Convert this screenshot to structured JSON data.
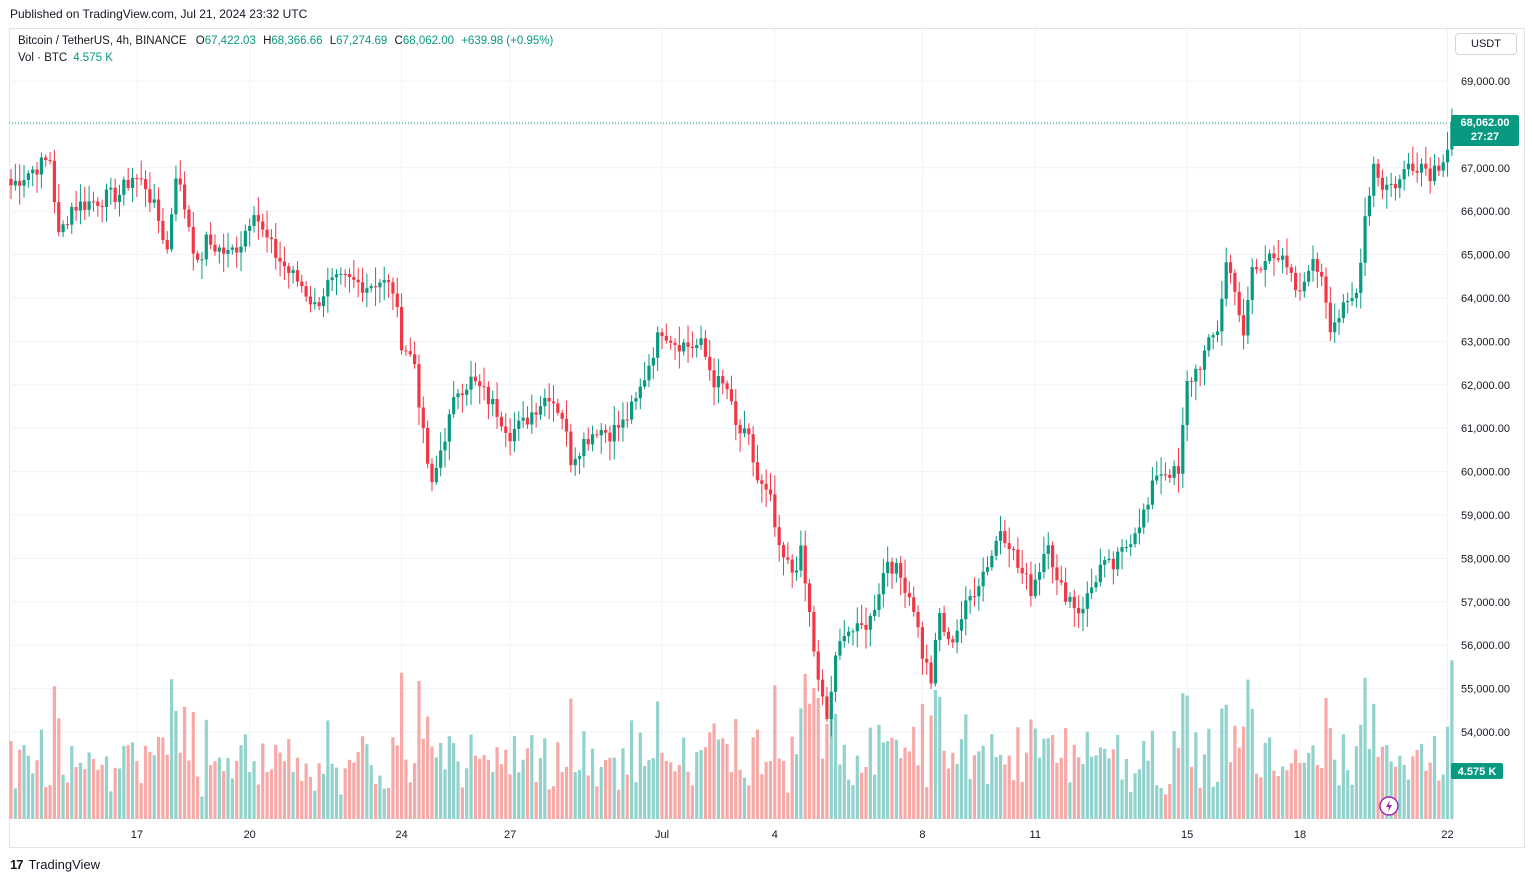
{
  "header": {
    "published": "Published on TradingView.com, Jul 21, 2024 23:32 UTC"
  },
  "legend": {
    "symbol": "Bitcoin / TetherUS, 4h, BINANCE",
    "open_label": "O",
    "open": "67,422.03",
    "high_label": "H",
    "high": "68,366.66",
    "low_label": "L",
    "low": "67,274.69",
    "close_label": "C",
    "close": "68,062.00",
    "change": "+639.98 (+0.95%)",
    "vol_label": "Vol · BTC",
    "vol_value": "4.575 K"
  },
  "currency_button": "USDT",
  "price_tag": {
    "price": "68,062.00",
    "countdown": "27:27"
  },
  "volume_tag": "4.575 K",
  "footer": {
    "brand": "TradingView",
    "logo_text": "17"
  },
  "colors": {
    "up": "#089981",
    "down": "#f23645",
    "up_vol": "#92d2cc",
    "down_vol": "#f7a9a7",
    "grid": "#f0f3fa"
  },
  "chart_data": {
    "type": "candlestick",
    "interval": "4h",
    "yaxis_ticks": [
      {
        "value": 69000,
        "label": "69,000.00"
      },
      {
        "value": 68000,
        "label": ""
      },
      {
        "value": 67000,
        "label": "67,000.00"
      },
      {
        "value": 66000,
        "label": "66,000.00"
      },
      {
        "value": 65000,
        "label": "65,000.00"
      },
      {
        "value": 64000,
        "label": "64,000.00"
      },
      {
        "value": 63000,
        "label": "63,000.00"
      },
      {
        "value": 62000,
        "label": "62,000.00"
      },
      {
        "value": 61000,
        "label": "61,000.00"
      },
      {
        "value": 60000,
        "label": "60,000.00"
      },
      {
        "value": 59000,
        "label": "59,000.00"
      },
      {
        "value": 58000,
        "label": "58,000.00"
      },
      {
        "value": 57000,
        "label": "57,000.00"
      },
      {
        "value": 56000,
        "label": "56,000.00"
      },
      {
        "value": 55000,
        "label": "55,000.00"
      },
      {
        "value": 54000,
        "label": "54,000.00"
      }
    ],
    "xaxis_ticks": [
      {
        "index": 29,
        "label": "17"
      },
      {
        "index": 55,
        "label": "20"
      },
      {
        "index": 90,
        "label": "24"
      },
      {
        "index": 115,
        "label": "27"
      },
      {
        "index": 150,
        "label": "Jul"
      },
      {
        "index": 176,
        "label": "4"
      },
      {
        "index": 210,
        "label": "8"
      },
      {
        "index": 236,
        "label": "11"
      },
      {
        "index": 271,
        "label": "15"
      },
      {
        "index": 297,
        "label": "18"
      },
      {
        "index": 331,
        "label": "22"
      }
    ],
    "ylim": [
      53350,
      70000
    ],
    "last_close": 68062,
    "waypoints": [
      [
        0,
        66600
      ],
      [
        4,
        66900
      ],
      [
        9,
        67200
      ],
      [
        11,
        65400
      ],
      [
        14,
        66100
      ],
      [
        18,
        66200
      ],
      [
        25,
        66400
      ],
      [
        28,
        66800
      ],
      [
        31,
        66600
      ],
      [
        34,
        65800
      ],
      [
        36,
        65100
      ],
      [
        38,
        66900
      ],
      [
        41,
        65700
      ],
      [
        43,
        64700
      ],
      [
        45,
        65300
      ],
      [
        50,
        65000
      ],
      [
        53,
        65300
      ],
      [
        56,
        66100
      ],
      [
        58,
        65500
      ],
      [
        61,
        65000
      ],
      [
        64,
        64600
      ],
      [
        67,
        64300
      ],
      [
        70,
        63800
      ],
      [
        73,
        64300
      ],
      [
        77,
        64400
      ],
      [
        82,
        64300
      ],
      [
        85,
        64400
      ],
      [
        88,
        64200
      ],
      [
        90,
        63000
      ],
      [
        93,
        62500
      ],
      [
        95,
        60800
      ],
      [
        97,
        59600
      ],
      [
        99,
        60500
      ],
      [
        101,
        61200
      ],
      [
        103,
        61900
      ],
      [
        106,
        62100
      ],
      [
        109,
        61800
      ],
      [
        112,
        61400
      ],
      [
        115,
        60900
      ],
      [
        118,
        61100
      ],
      [
        121,
        61500
      ],
      [
        124,
        61800
      ],
      [
        127,
        61300
      ],
      [
        129,
        60300
      ],
      [
        132,
        60700
      ],
      [
        135,
        61000
      ],
      [
        138,
        60900
      ],
      [
        141,
        61100
      ],
      [
        144,
        61600
      ],
      [
        146,
        62200
      ],
      [
        148,
        62800
      ],
      [
        150,
        63300
      ],
      [
        153,
        63000
      ],
      [
        156,
        62900
      ],
      [
        159,
        62900
      ],
      [
        162,
        62100
      ],
      [
        165,
        61900
      ],
      [
        167,
        61000
      ],
      [
        170,
        60700
      ],
      [
        172,
        59800
      ],
      [
        175,
        59300
      ],
      [
        177,
        58100
      ],
      [
        180,
        57700
      ],
      [
        182,
        58100
      ],
      [
        184,
        56700
      ],
      [
        186,
        55100
      ],
      [
        188,
        54300
      ],
      [
        190,
        55600
      ],
      [
        192,
        56400
      ],
      [
        195,
        56300
      ],
      [
        198,
        56600
      ],
      [
        200,
        57300
      ],
      [
        202,
        58000
      ],
      [
        204,
        57700
      ],
      [
        206,
        57400
      ],
      [
        208,
        56900
      ],
      [
        210,
        55800
      ],
      [
        212,
        55200
      ],
      [
        214,
        56700
      ],
      [
        216,
        56000
      ],
      [
        218,
        56400
      ],
      [
        221,
        57100
      ],
      [
        223,
        57500
      ],
      [
        226,
        58100
      ],
      [
        228,
        58700
      ],
      [
        230,
        58400
      ],
      [
        232,
        57800
      ],
      [
        235,
        57300
      ],
      [
        237,
        57800
      ],
      [
        239,
        58500
      ],
      [
        241,
        57400
      ],
      [
        244,
        57100
      ],
      [
        246,
        56800
      ],
      [
        248,
        57100
      ],
      [
        251,
        57800
      ],
      [
        254,
        57800
      ],
      [
        257,
        58300
      ],
      [
        259,
        58700
      ],
      [
        262,
        59200
      ],
      [
        264,
        60000
      ],
      [
        267,
        60000
      ],
      [
        269,
        59900
      ],
      [
        271,
        62000
      ],
      [
        274,
        62500
      ],
      [
        276,
        62900
      ],
      [
        278,
        63300
      ],
      [
        280,
        64800
      ],
      [
        282,
        64300
      ],
      [
        284,
        63000
      ],
      [
        286,
        64700
      ],
      [
        288,
        64600
      ],
      [
        290,
        65200
      ],
      [
        293,
        64800
      ],
      [
        295,
        64400
      ],
      [
        297,
        64000
      ],
      [
        299,
        64800
      ],
      [
        302,
        64600
      ],
      [
        304,
        63400
      ],
      [
        306,
        63600
      ],
      [
        308,
        63800
      ],
      [
        310,
        64100
      ],
      [
        312,
        65900
      ],
      [
        314,
        67100
      ],
      [
        316,
        66600
      ],
      [
        318,
        66600
      ],
      [
        320,
        66700
      ],
      [
        322,
        67100
      ],
      [
        325,
        67100
      ],
      [
        327,
        66900
      ],
      [
        329,
        67100
      ],
      [
        331,
        67500
      ],
      [
        332,
        68062
      ]
    ],
    "volume_max": 4.9,
    "volume_last": 4.575
  }
}
